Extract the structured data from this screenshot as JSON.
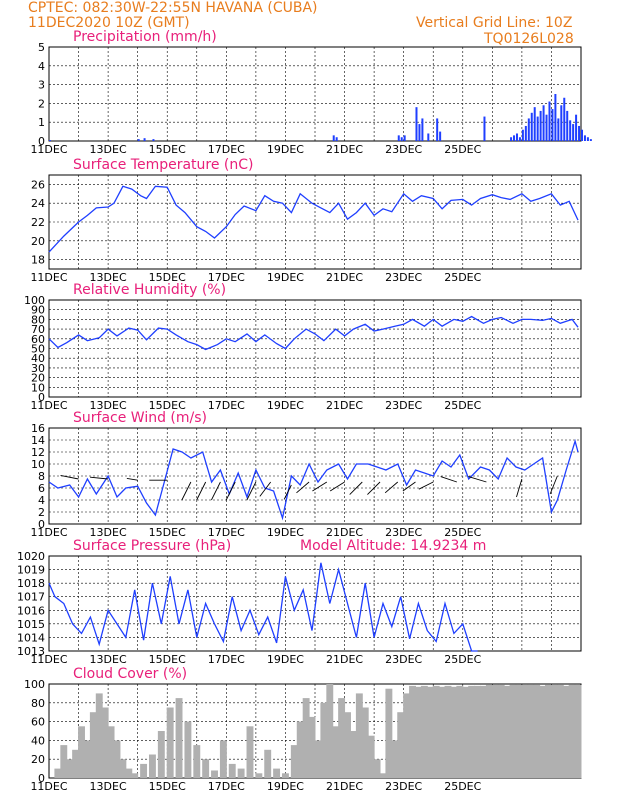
{
  "header": {
    "line1": "CPTEC:   082:30W-22:55N   HAVANA (CUBA)",
    "line2": "11DEC2020  10Z (GMT)",
    "grid_note": "Vertical Grid Line: 10Z",
    "code": "TQ0126L028"
  },
  "colors": {
    "header": "#e87d1e",
    "title": "#e8207a",
    "line": "#1f3fff",
    "cloud": "#b0b0b0"
  },
  "chart_data": [
    {
      "type": "bar",
      "title": "Precipitation (mm/h)",
      "ylim": [
        0,
        5
      ],
      "yticks": [
        0,
        1,
        2,
        3,
        4,
        5
      ],
      "xticks": [
        "11DEC",
        "13DEC",
        "15DEC",
        "17DEC",
        "19DEC",
        "21DEC",
        "23DEC",
        "25DEC"
      ],
      "x_days": [
        0,
        3,
        3.2,
        3.5,
        9.6,
        9.7,
        11.8,
        11.9,
        12,
        12.4,
        12.5,
        12.6,
        12.8,
        13.1,
        13.2,
        14.7,
        15.6,
        15.7,
        15.8,
        15.9,
        16,
        16.1,
        16.2,
        16.3,
        16.4,
        16.5,
        16.6,
        16.7,
        16.8,
        16.9,
        17,
        17.1,
        17.2,
        17.3,
        17.4,
        17.5,
        17.6,
        17.7,
        17.8,
        17.9,
        18,
        18.1,
        18.2,
        18.3
      ],
      "values": [
        0.05,
        0.1,
        0.15,
        0.1,
        0.3,
        0.2,
        0.3,
        0.2,
        0.3,
        1.8,
        0.9,
        1.2,
        0.4,
        1.2,
        0.5,
        1.3,
        0.2,
        0.3,
        0.4,
        0.2,
        0.6,
        0.8,
        1.2,
        1.5,
        1.8,
        1.3,
        1.6,
        1.9,
        1.4,
        2.1,
        1.7,
        2.5,
        1.2,
        1.9,
        2.3,
        1.6,
        1.1,
        0.9,
        1.4,
        0.8,
        0.6,
        0.3,
        0.2,
        0.1
      ]
    },
    {
      "type": "line",
      "title": "Surface Temperature (nC)",
      "ylim": [
        17,
        27
      ],
      "yticks": [
        18,
        20,
        22,
        24,
        26
      ],
      "xticks": [
        "11DEC",
        "13DEC",
        "15DEC",
        "17DEC",
        "19DEC",
        "21DEC",
        "23DEC",
        "25DEC"
      ],
      "x_days": [
        0,
        0.5,
        1,
        1.3,
        1.6,
        2,
        2.2,
        2.5,
        2.8,
        3.1,
        3.3,
        3.6,
        4,
        4.3,
        4.6,
        5,
        5.3,
        5.6,
        6,
        6.3,
        6.6,
        7,
        7.3,
        7.6,
        7.9,
        8.2,
        8.5,
        8.9,
        9.2,
        9.5,
        9.8,
        10.1,
        10.4,
        10.7,
        11,
        11.3,
        11.6,
        12,
        12.3,
        12.6,
        13,
        13.3,
        13.6,
        14,
        14.3,
        14.6,
        15,
        15.3,
        15.6,
        16,
        16.3,
        16.6,
        17,
        17.3,
        17.6,
        17.9
      ],
      "values": [
        18.8,
        20.5,
        22,
        22.7,
        23.5,
        23.6,
        24,
        25.8,
        25.5,
        24.8,
        24.5,
        25.8,
        25.7,
        23.8,
        23,
        21.5,
        21,
        20.3,
        21.5,
        22.8,
        23.7,
        23.2,
        24.8,
        24.2,
        24,
        23,
        25,
        24,
        23.5,
        23,
        24,
        22.3,
        23,
        24,
        22.7,
        23.4,
        23.1,
        25,
        24.2,
        24.8,
        24.5,
        23.4,
        24.3,
        24.4,
        23.8,
        24.5,
        24.9,
        24.6,
        24.4,
        25,
        24.2,
        24.5,
        25,
        23.8,
        24.2,
        22.2
      ]
    },
    {
      "type": "line",
      "title": "Relative Humidity (%)",
      "ylim": [
        0,
        100
      ],
      "yticks": [
        0,
        10,
        20,
        30,
        40,
        50,
        60,
        70,
        80,
        90,
        100
      ],
      "xticks": [
        "11DEC",
        "13DEC",
        "15DEC",
        "17DEC",
        "19DEC",
        "21DEC",
        "23DEC",
        "25DEC"
      ],
      "x_days": [
        0,
        0.3,
        0.6,
        1,
        1.3,
        1.7,
        2,
        2.3,
        2.7,
        3,
        3.3,
        3.7,
        4,
        4.3,
        4.7,
        5,
        5.3,
        5.7,
        6,
        6.3,
        6.7,
        7,
        7.3,
        7.7,
        8,
        8.3,
        8.7,
        9,
        9.3,
        9.7,
        10,
        10.3,
        10.7,
        11,
        11.3,
        11.7,
        12,
        12.3,
        12.7,
        13,
        13.3,
        13.7,
        14,
        14.3,
        14.7,
        15,
        15.3,
        15.7,
        16,
        16.3,
        16.7,
        17,
        17.3,
        17.7,
        17.9
      ],
      "values": [
        60,
        51,
        56,
        64,
        58,
        61,
        70,
        63,
        71,
        69,
        59,
        71,
        70,
        64,
        57,
        54,
        49,
        54,
        60,
        57,
        65,
        57,
        64,
        55,
        50,
        60,
        70,
        65,
        58,
        70,
        63,
        70,
        75,
        68,
        70,
        73,
        75,
        80,
        73,
        80,
        73,
        80,
        78,
        83,
        76,
        80,
        82,
        76,
        80,
        80,
        79,
        81,
        76,
        80,
        72
      ]
    },
    {
      "type": "line",
      "title": "Surface Wind (m/s)",
      "ylim": [
        0,
        16
      ],
      "yticks": [
        0,
        2,
        4,
        6,
        8,
        10,
        12,
        14,
        16
      ],
      "xticks": [
        "11DEC",
        "13DEC",
        "15DEC",
        "17DEC",
        "19DEC",
        "21DEC",
        "23DEC",
        "25DEC"
      ],
      "x_days": [
        0,
        0.3,
        0.7,
        1,
        1.3,
        1.6,
        2,
        2.3,
        2.6,
        3,
        3.3,
        3.6,
        3.9,
        4.2,
        4.5,
        4.8,
        5.2,
        5.5,
        5.8,
        6.1,
        6.4,
        6.7,
        7,
        7.3,
        7.6,
        7.9,
        8.2,
        8.5,
        8.8,
        9.1,
        9.4,
        9.8,
        10.1,
        10.4,
        10.8,
        11.1,
        11.4,
        11.8,
        12.1,
        12.4,
        12.7,
        13,
        13.3,
        13.6,
        13.9,
        14.2,
        14.6,
        14.9,
        15.2,
        15.5,
        15.8,
        16.1,
        16.4,
        16.7,
        17,
        17.2,
        17.5,
        17.8,
        17.9
      ],
      "values": [
        7,
        6,
        6.5,
        4.5,
        7.5,
        5,
        8,
        4.5,
        6,
        6.3,
        3.5,
        1.5,
        7,
        12.5,
        12,
        11,
        12,
        7,
        9,
        5,
        8.5,
        4.5,
        9,
        6,
        5.5,
        1,
        8,
        6.5,
        10,
        7,
        9,
        10,
        7.5,
        10,
        10,
        9.5,
        9,
        10,
        6.5,
        9,
        8.5,
        8,
        10.5,
        9.5,
        11.5,
        7.5,
        9.5,
        9,
        7.5,
        11,
        9.5,
        9,
        10,
        11,
        2,
        4,
        9,
        13.8,
        12
      ]
    },
    {
      "type": "line",
      "title": "Surface Pressure (hPa)",
      "annotation": "Model Altitude: 14.9234  m",
      "ylim": [
        1013,
        1020
      ],
      "yticks": [
        1013,
        1014,
        1015,
        1016,
        1017,
        1018,
        1019,
        1020
      ],
      "xticks": [
        "11DEC",
        "13DEC",
        "15DEC",
        "17DEC",
        "19DEC",
        "21DEC",
        "23DEC",
        "25DEC"
      ],
      "x_days": [
        0,
        0.2,
        0.5,
        0.8,
        1.1,
        1.4,
        1.7,
        2,
        2.3,
        2.6,
        2.9,
        3.2,
        3.5,
        3.8,
        4.1,
        4.4,
        4.7,
        5,
        5.3,
        5.6,
        5.9,
        6.2,
        6.5,
        6.8,
        7.1,
        7.4,
        7.7,
        8,
        8.3,
        8.6,
        8.9,
        9.2,
        9.5,
        9.8,
        10.1,
        10.4,
        10.7,
        11,
        11.3,
        11.6,
        11.9,
        12.2,
        12.5,
        12.8,
        13.1,
        13.4,
        13.7,
        14,
        14.3,
        14.5
      ],
      "values": [
        1018,
        1017,
        1016.5,
        1015,
        1014.3,
        1015.5,
        1013.5,
        1016,
        1015,
        1014,
        1017.5,
        1013.8,
        1018,
        1015,
        1018.5,
        1015,
        1017.5,
        1014,
        1016.5,
        1015,
        1013.7,
        1017,
        1014.5,
        1016,
        1014.2,
        1015.5,
        1013.6,
        1018.5,
        1016,
        1017.5,
        1014.5,
        1019.5,
        1016.5,
        1019,
        1016.5,
        1014,
        1018,
        1014,
        1016.5,
        1014.8,
        1017,
        1013.9,
        1016.5,
        1014.5,
        1013.7,
        1016.5,
        1014.3,
        1015,
        1013,
        1013
      ]
    },
    {
      "type": "bar",
      "title": "Cloud Cover (%)",
      "ylim": [
        0,
        100
      ],
      "yticks": [
        0,
        20,
        40,
        60,
        80,
        100
      ],
      "xticks": [
        "11DEC",
        "13DEC",
        "15DEC",
        "17DEC",
        "19DEC",
        "21DEC",
        "23DEC",
        "25DEC"
      ],
      "x_days": [
        0.3,
        0.5,
        0.7,
        0.9,
        1.1,
        1.3,
        1.5,
        1.7,
        1.9,
        2.1,
        2.3,
        2.5,
        2.7,
        2.9,
        3.2,
        3.5,
        3.8,
        4.1,
        4.4,
        4.7,
        5,
        5.3,
        5.6,
        5.9,
        6.2,
        6.5,
        6.8,
        7.1,
        7.4,
        7.7,
        8,
        8.3,
        8.5,
        8.7,
        8.9,
        9.1,
        9.3,
        9.5,
        9.7,
        9.9,
        10.1,
        10.3,
        10.5,
        10.7,
        10.9,
        11.1,
        11.3,
        11.5,
        11.7,
        11.9,
        12.1,
        12.3,
        12.5,
        12.7,
        12.9,
        13.1,
        13.3,
        13.5,
        13.7,
        13.9,
        14.1,
        14.3,
        14.5,
        14.7,
        14.9,
        15.1,
        15.3,
        15.5,
        15.7,
        15.9,
        16.1,
        16.3,
        16.5,
        16.7,
        16.9,
        17.1,
        17.3,
        17.5,
        17.7,
        17.9
      ],
      "values": [
        10,
        35,
        20,
        30,
        55,
        40,
        70,
        90,
        75,
        55,
        40,
        20,
        10,
        5,
        15,
        25,
        50,
        75,
        85,
        60,
        35,
        20,
        8,
        40,
        15,
        10,
        55,
        5,
        30,
        10,
        5,
        35,
        60,
        85,
        65,
        40,
        80,
        100,
        55,
        85,
        70,
        50,
        90,
        75,
        45,
        20,
        5,
        95,
        40,
        70,
        90,
        98,
        97,
        98,
        97,
        98,
        97,
        98,
        97,
        98,
        97,
        98,
        98,
        98,
        99,
        99,
        99,
        98,
        99,
        99,
        99,
        99,
        99,
        98,
        99,
        99,
        99,
        98,
        99,
        99
      ]
    },
    {
      "type": "line",
      "title": "",
      "x_days": [
        0,
        0.3,
        0.7,
        1,
        1.3,
        1.6,
        2,
        2.3,
        2.6,
        3,
        3.3,
        3.6,
        3.9,
        4.2,
        4.5,
        4.8,
        5.2,
        5.5,
        5.8,
        6.1,
        6.4,
        6.7,
        7,
        7.3,
        7.6,
        7.9,
        8.2,
        8.5,
        8.8,
        9.1,
        9.4,
        9.8,
        10.1,
        10.4,
        10.8,
        11.1,
        11.4,
        11.8,
        12.1,
        12.4,
        12.7,
        13,
        13.3,
        13.6,
        13.9,
        14.2,
        14.6,
        14.9,
        15.2,
        15.5,
        15.8,
        16.1,
        16.4,
        16.7,
        17,
        17.2,
        17.5,
        17.8
      ],
      "values": [
        1,
        1,
        1,
        1,
        1,
        1,
        1,
        1,
        1,
        1,
        1,
        1,
        1,
        1,
        1,
        1,
        1,
        1,
        1,
        1,
        1,
        1,
        1,
        1,
        1,
        1,
        1,
        1,
        1,
        1,
        1,
        1,
        1,
        1,
        1,
        1,
        1,
        1,
        1,
        1,
        1,
        1,
        1,
        1,
        1,
        1,
        1,
        1,
        1,
        1,
        1,
        1,
        1,
        1,
        1,
        1,
        1,
        1
      ]
    }
  ]
}
